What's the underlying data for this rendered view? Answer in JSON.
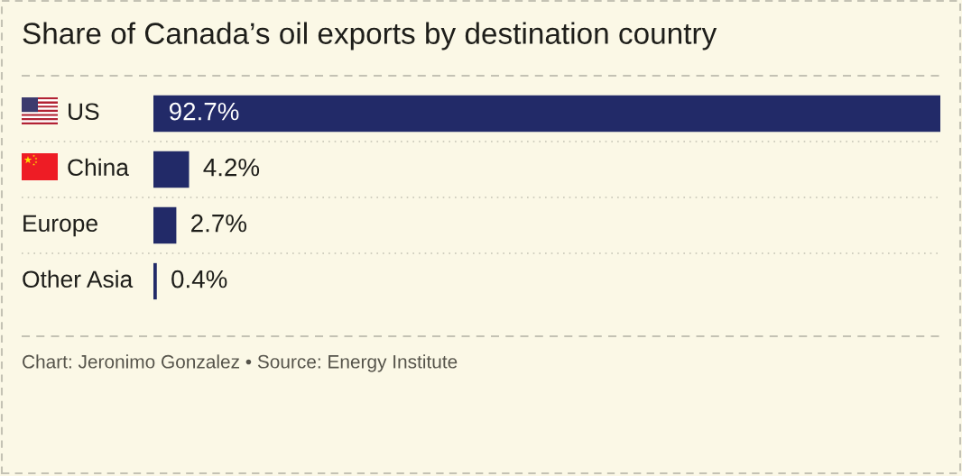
{
  "chart_data": {
    "type": "bar",
    "orientation": "horizontal",
    "title": "Share of Canada’s oil exports by destination country",
    "categories": [
      "US",
      "China",
      "Europe",
      "Other Asia"
    ],
    "values": [
      92.7,
      4.2,
      2.7,
      0.4
    ],
    "color": "#222a68",
    "value_labels": [
      "92.7%",
      "4.2%",
      "2.7%",
      "0.4%"
    ],
    "annotations": [
      "Chart: Jeronimo Gonzalez • Source: Energy Institute"
    ]
  }
}
